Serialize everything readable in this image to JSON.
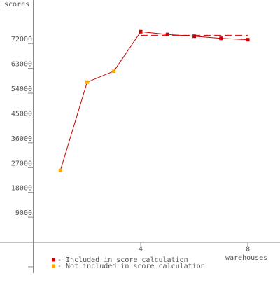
{
  "chart_data": {
    "type": "line",
    "y_label": "scores",
    "x_label": "warehouses",
    "xlim": [
      0,
      9.2
    ],
    "xticks": [
      4,
      8
    ],
    "ylim": [
      -11300,
      87800
    ],
    "yticks": [
      9000,
      18000,
      27000,
      36000,
      45000,
      54000,
      63000,
      72000
    ],
    "unlabeled_yticks": [
      -9000
    ],
    "line_color": "#cc0000",
    "series": [
      {
        "name": "- Included in score calculation",
        "color": "#cc0000",
        "x": [
          4,
          5,
          6,
          7,
          8
        ],
        "values": [
          76300,
          75300,
          74650,
          73900,
          73400
        ]
      },
      {
        "name": "- Not included in score calculation",
        "color": "#ffaa00",
        "x": [
          1,
          2,
          3
        ],
        "values": [
          26000,
          58000,
          62000
        ]
      }
    ],
    "score_line": {
      "value": 75000,
      "x": [
        4,
        8
      ]
    }
  }
}
